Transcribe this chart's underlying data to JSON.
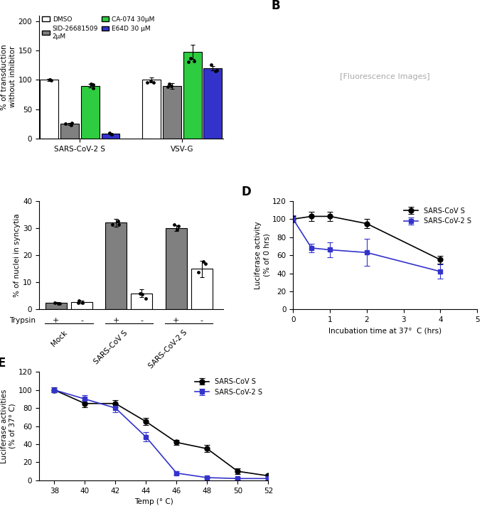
{
  "panel_A": {
    "groups": [
      "SARS-CoV-2 S",
      "VSV-G"
    ],
    "conditions": [
      "DMSO",
      "SID-26681509\n2μM",
      "CA-074 30μM",
      "E64D 30 μM"
    ],
    "bar_colors": [
      "white",
      "#808080",
      "#2ecc40",
      "#3333cc"
    ],
    "values": [
      [
        100,
        25,
        90,
        8
      ],
      [
        100,
        90,
        148,
        120
      ]
    ],
    "errors": [
      [
        2,
        2,
        3,
        1
      ],
      [
        4,
        5,
        12,
        4
      ]
    ],
    "ylabel": "% of transduction\nwithout inhibitor",
    "ylim": [
      0,
      210
    ],
    "yticks": [
      0,
      50,
      100,
      150,
      200
    ]
  },
  "panel_C": {
    "group_labels": [
      "Mock",
      "SARS-CoV S",
      "SARS-CoV-2 S"
    ],
    "trypsin_labels": [
      "+",
      "-",
      "+",
      "-",
      "+",
      "-"
    ],
    "bar_colors": [
      "#808080",
      "white",
      "#808080",
      "white",
      "#808080",
      "white"
    ],
    "values": [
      2.5,
      2.8,
      32,
      6,
      30,
      15
    ],
    "errors": [
      0.3,
      0.5,
      1.5,
      1.5,
      1.0,
      3.0
    ],
    "ylabel": "% of nuclei in syncytia",
    "ylim": [
      0,
      40
    ],
    "yticks": [
      0,
      10,
      20,
      30,
      40
    ]
  },
  "panel_D": {
    "xlabel": "Incubation time at 37°  C (hrs)",
    "ylabel": "Luciferase activity\n(% of 0 hrs)",
    "ylim": [
      0,
      120
    ],
    "yticks": [
      0,
      20,
      40,
      60,
      80,
      100,
      120
    ],
    "xlim": [
      0,
      5
    ],
    "xticks": [
      0,
      1,
      2,
      3,
      4,
      5
    ],
    "series": [
      {
        "label": "SARS-CoV S",
        "color": "black",
        "marker": "o",
        "x": [
          0,
          0.5,
          1,
          2,
          4
        ],
        "y": [
          100,
          103,
          103,
          95,
          55
        ],
        "yerr": [
          3,
          5,
          5,
          5,
          4
        ]
      },
      {
        "label": "SARS-CoV-2 S",
        "color": "#3333cc",
        "marker": "s",
        "x": [
          0,
          0.5,
          1,
          2,
          4
        ],
        "y": [
          100,
          68,
          66,
          63,
          42
        ],
        "yerr": [
          4,
          5,
          8,
          15,
          8
        ]
      }
    ]
  },
  "panel_E": {
    "xlabel": "Temp (° C)",
    "ylabel": "Luciferase activities\n(% of 37° C)",
    "ylim": [
      0,
      120
    ],
    "yticks": [
      0,
      20,
      40,
      60,
      80,
      100,
      120
    ],
    "xlim": [
      37,
      52
    ],
    "xticks": [
      38,
      40,
      42,
      44,
      46,
      48,
      50,
      52
    ],
    "series": [
      {
        "label": "SARS-CoV S",
        "color": "black",
        "marker": "o",
        "x": [
          38,
          40,
          42,
          44,
          46,
          48,
          50,
          52
        ],
        "y": [
          100,
          85,
          85,
          65,
          42,
          35,
          10,
          5
        ],
        "yerr": [
          3,
          4,
          4,
          4,
          3,
          4,
          3,
          2
        ]
      },
      {
        "label": "SARS-CoV-2 S",
        "color": "#3333cc",
        "marker": "s",
        "x": [
          38,
          40,
          42,
          44,
          46,
          48,
          50,
          52
        ],
        "y": [
          100,
          90,
          80,
          48,
          8,
          3,
          2,
          2
        ],
        "yerr": [
          3,
          4,
          5,
          5,
          2,
          1,
          1,
          1
        ]
      }
    ]
  }
}
